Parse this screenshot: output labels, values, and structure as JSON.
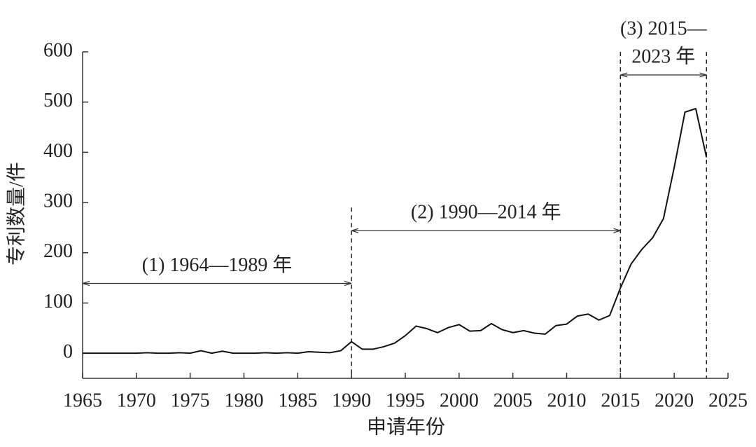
{
  "chart_data": {
    "type": "line",
    "x_label": "申请年份",
    "y_label": "专利数量/件",
    "x": [
      1965,
      1966,
      1967,
      1968,
      1969,
      1970,
      1971,
      1972,
      1973,
      1974,
      1975,
      1976,
      1977,
      1978,
      1979,
      1980,
      1981,
      1982,
      1983,
      1984,
      1985,
      1986,
      1987,
      1988,
      1989,
      1990,
      1991,
      1992,
      1993,
      1994,
      1995,
      1996,
      1997,
      1998,
      1999,
      2000,
      2001,
      2002,
      2003,
      2004,
      2005,
      2006,
      2007,
      2008,
      2009,
      2010,
      2011,
      2012,
      2013,
      2014,
      2015,
      2016,
      2017,
      2018,
      2019,
      2020,
      2021,
      2022,
      2023
    ],
    "series": [
      {
        "color": "#111111",
        "values": [
          0,
          0,
          0,
          0,
          0,
          0,
          1,
          0,
          0,
          1,
          0,
          5,
          0,
          4,
          0,
          0,
          0,
          1,
          0,
          1,
          0,
          3,
          2,
          1,
          5,
          23,
          8,
          8,
          13,
          20,
          35,
          54,
          49,
          41,
          51,
          57,
          44,
          45,
          59,
          47,
          41,
          45,
          40,
          38,
          55,
          58,
          74,
          78,
          66,
          75,
          130,
          178,
          207,
          230,
          268,
          370,
          480,
          487,
          390
        ]
      }
    ],
    "xlim": [
      1965,
      2025
    ],
    "ylim": [
      -50,
      600
    ],
    "xticks": [
      1965,
      1970,
      1975,
      1980,
      1985,
      1990,
      1995,
      2000,
      2005,
      2010,
      2015,
      2020,
      2025
    ],
    "yticks": [
      0,
      100,
      200,
      300,
      400,
      500,
      600
    ],
    "vlines": [
      {
        "x": 1990,
        "y": 290
      },
      {
        "x": 2015,
        "y": 600
      },
      {
        "x": 2023,
        "y": 600
      }
    ],
    "annotations": [
      {
        "lines": [
          "(1) 1964—1989 年"
        ],
        "x": [
          1965,
          1990
        ],
        "y": 139
      },
      {
        "lines": [
          "(2) 1990—2014 年"
        ],
        "x": [
          1990,
          2015
        ],
        "y": 244
      },
      {
        "lines": [
          "(3) 2015—",
          "2023 年"
        ],
        "x": [
          2015,
          2023
        ],
        "y": 554
      }
    ]
  }
}
